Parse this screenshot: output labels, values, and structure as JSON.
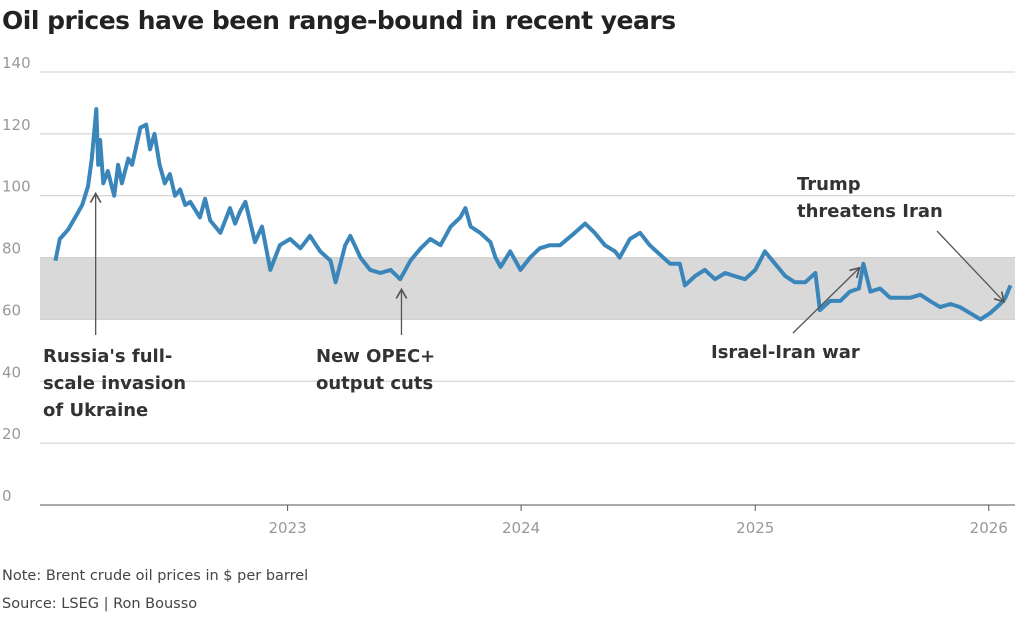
{
  "chart_data": {
    "type": "line",
    "title": "Oil prices have been range-bound in recent years",
    "xlabel": "",
    "ylabel": "",
    "ylim": [
      0,
      140
    ],
    "yticks": [
      0,
      20,
      40,
      60,
      80,
      100,
      120,
      140
    ],
    "xlim": [
      "2021-12-10",
      "2026-02-11"
    ],
    "xticks": [
      {
        "date": "2023-01-01",
        "label": "2023"
      },
      {
        "date": "2024-01-01",
        "label": "2024"
      },
      {
        "date": "2025-01-01",
        "label": "2025"
      },
      {
        "date": "2026-01-01",
        "label": "2026"
      }
    ],
    "grid": "horizontal",
    "line_color": "#3a86ba",
    "band": {
      "from": 60,
      "to": 80,
      "color": "#d9d9d9"
    },
    "series": [
      {
        "x": [
          "2022-01-03",
          "2022-01-10",
          "2022-01-23",
          "2022-02-03",
          "2022-02-14",
          "2022-02-23",
          "2022-03-01",
          "2022-03-08",
          "2022-03-11",
          "2022-03-14",
          "2022-03-19",
          "2022-03-26",
          "2022-04-05",
          "2022-04-11",
          "2022-04-17",
          "2022-04-27",
          "2022-05-03",
          "2022-05-16",
          "2022-05-25",
          "2022-05-31",
          "2022-06-07",
          "2022-06-15",
          "2022-06-23",
          "2022-07-01",
          "2022-07-09",
          "2022-07-17",
          "2022-07-25",
          "2022-08-02",
          "2022-08-17",
          "2022-08-25",
          "2022-09-02",
          "2022-09-10",
          "2022-09-18",
          "2022-10-03",
          "2022-10-11",
          "2022-10-19",
          "2022-10-27",
          "2022-11-11",
          "2022-11-22",
          "2022-12-05",
          "2022-12-20",
          "2023-01-05",
          "2023-01-21",
          "2023-02-05",
          "2023-02-21",
          "2023-03-09",
          "2023-03-17",
          "2023-04-01",
          "2023-04-09",
          "2023-04-25",
          "2023-05-10",
          "2023-05-26",
          "2023-06-11",
          "2023-06-26",
          "2023-07-12",
          "2023-07-28",
          "2023-08-12",
          "2023-08-28",
          "2023-09-13",
          "2023-09-28",
          "2023-10-06",
          "2023-10-14",
          "2023-10-29",
          "2023-11-14",
          "2023-11-22",
          "2023-11-30",
          "2023-12-15",
          "2023-12-31",
          "2024-01-15",
          "2024-01-30",
          "2024-02-15",
          "2024-03-02",
          "2024-03-25",
          "2024-04-10",
          "2024-04-25",
          "2024-05-11",
          "2024-05-27",
          "2024-06-03",
          "2024-06-19",
          "2024-07-05",
          "2024-07-20",
          "2024-08-05",
          "2024-08-21",
          "2024-09-05",
          "2024-09-13",
          "2024-09-29",
          "2024-10-14",
          "2024-10-30",
          "2024-11-15",
          "2024-11-30",
          "2024-12-16",
          "2025-01-01",
          "2025-01-16",
          "2025-02-01",
          "2025-02-17",
          "2025-03-04",
          "2025-03-20",
          "2025-04-05",
          "2025-04-12",
          "2025-04-28",
          "2025-05-14",
          "2025-05-29",
          "2025-06-12",
          "2025-06-19",
          "2025-06-30",
          "2025-07-15",
          "2025-07-31",
          "2025-08-16",
          "2025-08-31",
          "2025-09-16",
          "2025-10-01",
          "2025-10-17",
          "2025-11-02",
          "2025-11-17",
          "2025-12-03",
          "2025-12-19",
          "2026-01-03",
          "2026-01-19",
          "2026-01-27",
          "2026-02-04"
        ],
        "values": [
          79,
          86,
          89,
          93,
          97,
          103,
          112,
          128,
          110,
          118,
          104,
          108,
          100,
          110,
          104,
          112,
          110,
          122,
          123,
          115,
          120,
          110,
          104,
          107,
          100,
          102,
          97,
          98,
          93,
          99,
          92,
          90,
          88,
          96,
          91,
          95,
          98,
          85,
          90,
          76,
          84,
          86,
          83,
          87,
          82,
          79,
          72,
          84,
          87,
          80,
          76,
          75,
          76,
          73,
          79,
          83,
          86,
          84,
          90,
          93,
          96,
          90,
          88,
          85,
          80,
          77,
          82,
          76,
          80,
          83,
          84,
          84,
          88,
          91,
          88,
          84,
          82,
          80,
          86,
          88,
          84,
          81,
          78,
          78,
          71,
          74,
          76,
          73,
          75,
          74,
          73,
          76,
          82,
          78,
          74,
          72,
          72,
          75,
          63,
          66,
          66,
          69,
          70,
          78,
          69,
          70,
          67,
          67,
          67,
          68,
          66,
          64,
          65,
          64,
          62,
          60,
          62,
          65,
          67,
          71
        ]
      }
    ],
    "annotations": [
      {
        "date": "2022-03-07",
        "value": 102,
        "lines": [
          "Russia's full-",
          "scale invasion",
          "of Ukraine"
        ]
      },
      {
        "date": "2023-06-28",
        "value": 71,
        "lines": [
          "New OPEC+",
          "output cuts"
        ]
      },
      {
        "date": "2025-06-13",
        "value": 78,
        "lines": [
          "Israel-Iran war"
        ]
      },
      {
        "date": "2026-01-25",
        "value": 67,
        "lines": [
          "Trump",
          "threatens Iran"
        ]
      }
    ]
  },
  "footer": {
    "note": "Note: Brent crude oil prices in $ per barrel",
    "source": "Source: LSEG | Ron Bousso"
  }
}
